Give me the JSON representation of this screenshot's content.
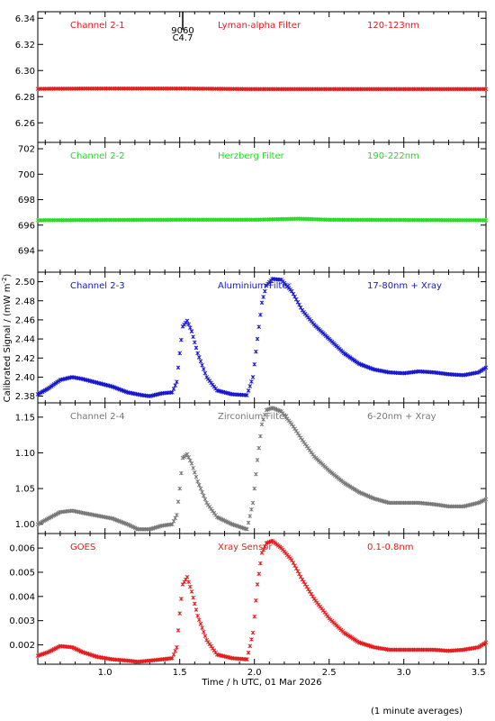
{
  "page": {
    "ylabel": "Calibrated Signal / (mW m",
    "ylabel_exp": "-2",
    "ylabel_close": ")",
    "xlabel": "Time / h UTC, 01 Mar 2026",
    "footnote": "(1 minute averages)",
    "flare_marker": {
      "time": 1.52,
      "labels": [
        "9060",
        "C4.7"
      ]
    }
  },
  "chart_data": [
    {
      "type": "scatter",
      "labels": [
        "Channel 2-1",
        "Lyman-alpha Filter",
        "120-123nm"
      ],
      "color": "#e41a1c",
      "xlim": [
        0.55,
        3.55
      ],
      "ylim": [
        6.245,
        6.345
      ],
      "yticks": [
        6.26,
        6.28,
        6.3,
        6.32,
        6.34
      ],
      "ytick_labels": [
        "6.26",
        "6.28",
        "6.30",
        "6.32",
        "6.34"
      ],
      "x": [
        0.55,
        1.0,
        1.5,
        2.0,
        2.5,
        3.0,
        3.55
      ],
      "y": [
        6.286,
        6.2862,
        6.2862,
        6.2858,
        6.2858,
        6.2858,
        6.2858
      ]
    },
    {
      "type": "scatter",
      "labels": [
        "Channel 2-2",
        "Herzberg Filter",
        "190-222nm"
      ],
      "color": "#22dd22",
      "xlim": [
        0.55,
        3.55
      ],
      "ylim": [
        692.3,
        702.5
      ],
      "yticks": [
        694,
        696,
        698,
        700,
        702
      ],
      "ytick_labels": [
        "694",
        "696",
        "698",
        "700",
        "702"
      ],
      "x": [
        0.55,
        1.0,
        1.5,
        2.0,
        2.3,
        2.5,
        3.0,
        3.55
      ],
      "y": [
        696.38,
        696.4,
        696.42,
        696.42,
        696.5,
        696.42,
        696.4,
        696.38
      ]
    },
    {
      "type": "scatter",
      "labels": [
        "Channel 2-3",
        "Aluminium Filter",
        "17-80nm + Xray"
      ],
      "color": "#1515cc",
      "xlim": [
        0.55,
        3.55
      ],
      "ylim": [
        2.373,
        2.51
      ],
      "yticks": [
        2.38,
        2.4,
        2.42,
        2.44,
        2.46,
        2.48,
        2.5
      ],
      "ytick_labels": [
        "2.38",
        "2.40",
        "2.42",
        "2.44",
        "2.46",
        "2.48",
        "2.50"
      ],
      "x": [
        0.55,
        0.62,
        0.7,
        0.78,
        0.85,
        0.95,
        1.05,
        1.15,
        1.25,
        1.3,
        1.38,
        1.45,
        1.48,
        1.5,
        1.52,
        1.55,
        1.58,
        1.62,
        1.68,
        1.75,
        1.85,
        1.95,
        1.99,
        2.02,
        2.05,
        2.08,
        2.12,
        2.18,
        2.25,
        2.32,
        2.4,
        2.5,
        2.6,
        2.7,
        2.8,
        2.9,
        3.0,
        3.1,
        3.2,
        3.3,
        3.4,
        3.5,
        3.55
      ],
      "y": [
        2.382,
        2.388,
        2.397,
        2.4,
        2.398,
        2.394,
        2.39,
        2.384,
        2.381,
        2.38,
        2.383,
        2.384,
        2.395,
        2.425,
        2.453,
        2.459,
        2.448,
        2.425,
        2.4,
        2.386,
        2.382,
        2.381,
        2.4,
        2.44,
        2.478,
        2.496,
        2.503,
        2.502,
        2.49,
        2.47,
        2.455,
        2.44,
        2.425,
        2.414,
        2.408,
        2.405,
        2.404,
        2.406,
        2.405,
        2.403,
        2.402,
        2.405,
        2.41
      ]
    },
    {
      "type": "scatter",
      "labels": [
        "Channel 2-4",
        "Zirconium Filter",
        "6-20nm + Xray"
      ],
      "color": "#777777",
      "xlim": [
        0.55,
        3.55
      ],
      "ylim": [
        0.987,
        1.17
      ],
      "yticks": [
        1.0,
        1.05,
        1.1,
        1.15
      ],
      "ytick_labels": [
        "1.00",
        "1.05",
        "1.10",
        "1.15"
      ],
      "x": [
        0.55,
        0.62,
        0.7,
        0.78,
        0.85,
        0.95,
        1.05,
        1.15,
        1.22,
        1.3,
        1.38,
        1.45,
        1.48,
        1.5,
        1.52,
        1.55,
        1.58,
        1.62,
        1.68,
        1.75,
        1.85,
        1.95,
        1.99,
        2.02,
        2.05,
        2.08,
        2.12,
        2.18,
        2.25,
        2.32,
        2.4,
        2.5,
        2.6,
        2.7,
        2.8,
        2.9,
        3.0,
        3.1,
        3.2,
        3.3,
        3.4,
        3.5,
        3.55
      ],
      "y": [
        1.0,
        1.008,
        1.017,
        1.019,
        1.016,
        1.012,
        1.008,
        1.0,
        0.993,
        0.993,
        0.998,
        1.0,
        1.013,
        1.05,
        1.093,
        1.098,
        1.085,
        1.06,
        1.03,
        1.01,
        1.0,
        0.993,
        1.03,
        1.09,
        1.14,
        1.16,
        1.163,
        1.158,
        1.14,
        1.118,
        1.095,
        1.075,
        1.058,
        1.045,
        1.036,
        1.03,
        1.03,
        1.03,
        1.028,
        1.025,
        1.025,
        1.03,
        1.035
      ]
    },
    {
      "type": "scatter",
      "labels": [
        "GOES",
        "Xray Sensor",
        "0.1-0.8nm"
      ],
      "color": "#e41a1c",
      "xlim": [
        0.55,
        3.55
      ],
      "ylim": [
        0.0012,
        0.0066
      ],
      "yticks": [
        0.002,
        0.003,
        0.004,
        0.005,
        0.006
      ],
      "ytick_labels": [
        "0.002",
        "0.003",
        "0.004",
        "0.005",
        "0.006"
      ],
      "x": [
        0.55,
        0.62,
        0.7,
        0.78,
        0.85,
        0.95,
        1.05,
        1.15,
        1.22,
        1.3,
        1.38,
        1.45,
        1.48,
        1.5,
        1.52,
        1.55,
        1.58,
        1.62,
        1.68,
        1.75,
        1.85,
        1.95,
        1.99,
        2.02,
        2.05,
        2.08,
        2.12,
        2.18,
        2.25,
        2.32,
        2.4,
        2.5,
        2.6,
        2.7,
        2.8,
        2.9,
        3.0,
        3.1,
        3.2,
        3.3,
        3.4,
        3.5,
        3.55
      ],
      "y": [
        0.00155,
        0.0017,
        0.00195,
        0.0019,
        0.0017,
        0.0015,
        0.0014,
        0.00135,
        0.0013,
        0.00135,
        0.0014,
        0.00145,
        0.0019,
        0.0033,
        0.0045,
        0.0048,
        0.0042,
        0.0032,
        0.0022,
        0.0016,
        0.00145,
        0.0014,
        0.0025,
        0.0045,
        0.0058,
        0.0062,
        0.0063,
        0.006,
        0.0055,
        0.0047,
        0.0039,
        0.0031,
        0.0025,
        0.0021,
        0.0019,
        0.0018,
        0.0018,
        0.0018,
        0.0018,
        0.00175,
        0.0018,
        0.0019,
        0.0021
      ]
    }
  ],
  "x_axis": {
    "ticks": [
      1.0,
      1.5,
      2.0,
      2.5,
      3.0,
      3.5
    ],
    "tick_labels": [
      "1.0",
      "1.5",
      "2.0",
      "2.5",
      "3.0",
      "3.5"
    ]
  }
}
